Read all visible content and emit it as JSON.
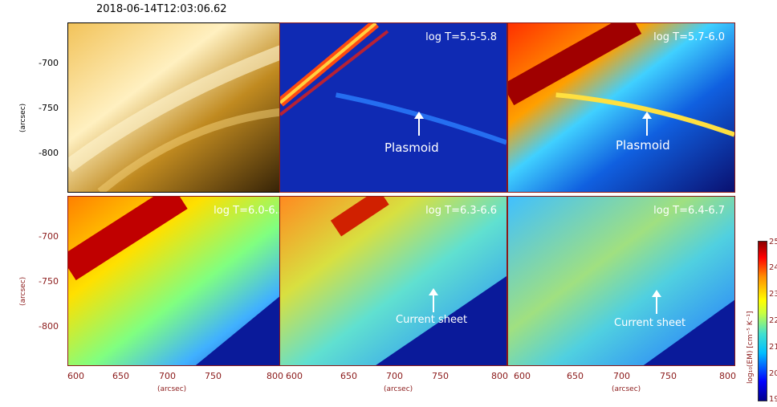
{
  "timestamp": "2018-06-14T12:03:06.62",
  "panels": {
    "p1": {
      "label": ""
    },
    "p2": {
      "label": "log T=5.5-5.8",
      "annotation": "Plasmoid"
    },
    "p3": {
      "label": "log T=5.7-6.0",
      "annotation": "Plasmoid"
    },
    "p4": {
      "label": "log T=6.0-6.3"
    },
    "p5": {
      "label": "log T=6.3-6.6",
      "annotation": "Current sheet"
    },
    "p6": {
      "label": "log T=6.4-6.7",
      "annotation": "Current sheet"
    }
  },
  "axes": {
    "y_ticks": [
      "-700",
      "-750",
      "-800"
    ],
    "x_ticks": [
      "600",
      "650",
      "700",
      "750",
      "800"
    ],
    "x_ticks_mid": [
      "600",
      "650",
      "700",
      "750",
      "800"
    ],
    "x_ticks_right": [
      "600",
      "650",
      "700",
      "750",
      "800"
    ],
    "unit": "(arcsec)"
  },
  "colorbar": {
    "ticks": [
      "25",
      "24",
      "23",
      "22",
      "21",
      "20",
      "19"
    ],
    "label": "log₁₀(EM) [cm⁻⁵ K⁻¹]"
  }
}
